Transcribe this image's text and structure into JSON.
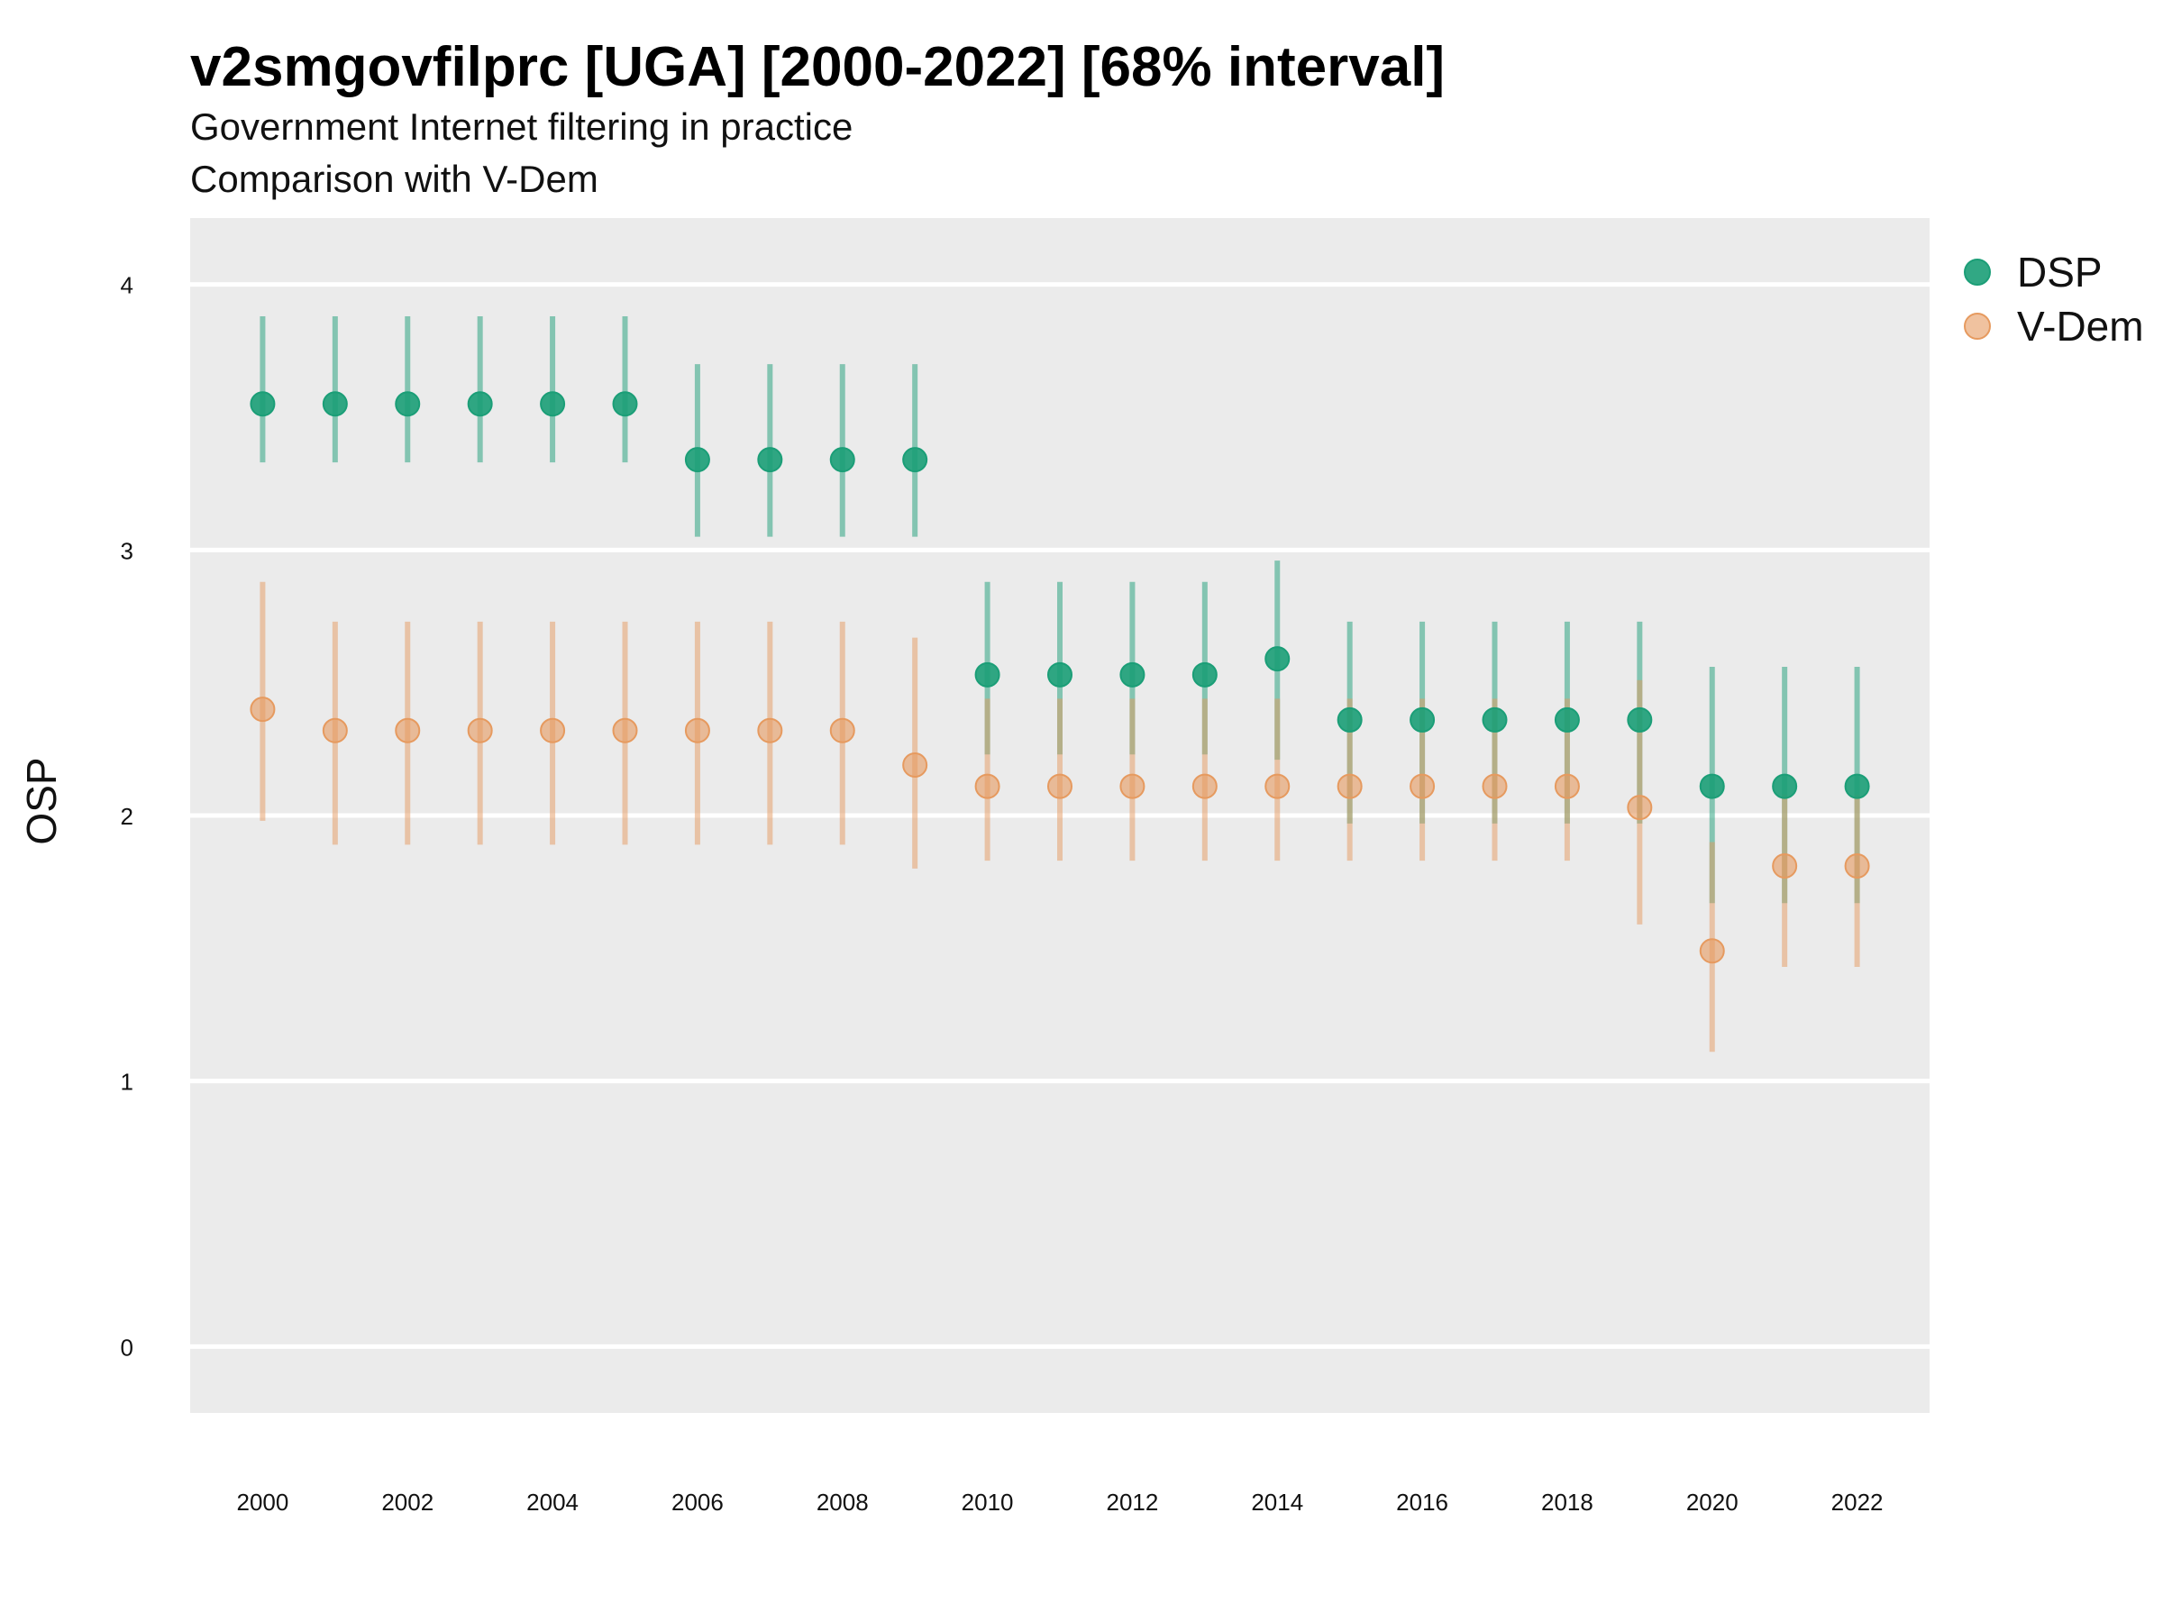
{
  "chart_data": {
    "type": "scatter",
    "title": "v2smgovfilprc [UGA] [2000-2022] [68% interval]",
    "subtitle_lines": [
      "Government Internet filtering in practice",
      "Comparison with V-Dem"
    ],
    "xlabel": "",
    "ylabel": "OSP",
    "ylim": [
      -0.25,
      4.25
    ],
    "y_ticks": [
      0,
      1,
      2,
      3,
      4
    ],
    "x_ticks": [
      2000,
      2002,
      2004,
      2006,
      2008,
      2010,
      2012,
      2014,
      2016,
      2018,
      2020,
      2022
    ],
    "x": [
      2000,
      2001,
      2002,
      2003,
      2004,
      2005,
      2006,
      2007,
      2008,
      2009,
      2010,
      2011,
      2012,
      2013,
      2014,
      2015,
      2016,
      2017,
      2018,
      2019,
      2020,
      2021,
      2022
    ],
    "grid": true,
    "legend_position": "right",
    "series": [
      {
        "name": "DSP",
        "color": "#1b9e77",
        "values": [
          3.55,
          3.55,
          3.55,
          3.55,
          3.55,
          3.55,
          3.34,
          3.34,
          3.34,
          3.34,
          2.53,
          2.53,
          2.53,
          2.53,
          2.59,
          2.36,
          2.36,
          2.36,
          2.36,
          2.36,
          2.11,
          2.11,
          2.11
        ],
        "lower": [
          3.33,
          3.33,
          3.33,
          3.33,
          3.33,
          3.33,
          3.05,
          3.05,
          3.05,
          3.05,
          2.23,
          2.23,
          2.23,
          2.23,
          2.21,
          1.97,
          1.97,
          1.97,
          1.97,
          1.97,
          1.67,
          1.67,
          1.67
        ],
        "upper": [
          3.88,
          3.88,
          3.88,
          3.88,
          3.88,
          3.88,
          3.7,
          3.7,
          3.7,
          3.7,
          2.88,
          2.88,
          2.88,
          2.88,
          2.96,
          2.73,
          2.73,
          2.73,
          2.73,
          2.73,
          2.56,
          2.56,
          2.56
        ]
      },
      {
        "name": "V-Dem",
        "color": "#e69a5f",
        "values": [
          2.4,
          2.32,
          2.32,
          2.32,
          2.32,
          2.32,
          2.32,
          2.32,
          2.32,
          2.19,
          2.11,
          2.11,
          2.11,
          2.11,
          2.11,
          2.11,
          2.11,
          2.11,
          2.11,
          2.03,
          1.49,
          1.81,
          1.81
        ],
        "lower": [
          1.98,
          1.89,
          1.89,
          1.89,
          1.89,
          1.89,
          1.89,
          1.89,
          1.89,
          1.8,
          1.83,
          1.83,
          1.83,
          1.83,
          1.83,
          1.83,
          1.83,
          1.83,
          1.83,
          1.59,
          1.11,
          1.43,
          1.43
        ],
        "upper": [
          2.88,
          2.73,
          2.73,
          2.73,
          2.73,
          2.73,
          2.73,
          2.73,
          2.73,
          2.67,
          2.44,
          2.44,
          2.44,
          2.44,
          2.44,
          2.44,
          2.44,
          2.44,
          2.44,
          2.51,
          1.9,
          2.08,
          2.08
        ]
      }
    ]
  }
}
